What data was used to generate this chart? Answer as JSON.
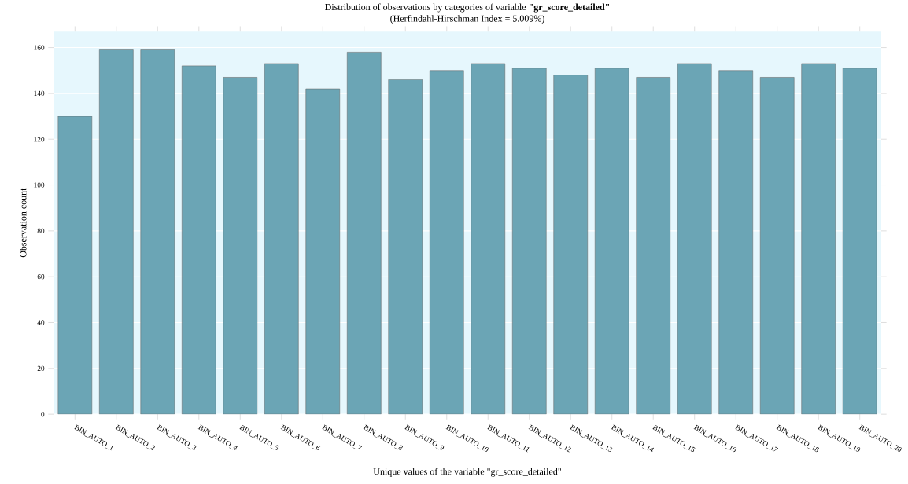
{
  "chart_data": {
    "type": "bar",
    "title": "Distribution of observations by categories of variable **\"gr_score_detailed\"**",
    "subtitle": "(Herfindahl-Hirschman Index = 5.009%)",
    "xlabel": "Unique values of the variable \"gr_score_detailed\"",
    "ylabel": "Observation count",
    "categories": [
      "BIN_AUTO_1",
      "BIN_AUTO_2",
      "BIN_AUTO_3",
      "BIN_AUTO_4",
      "BIN_AUTO_5",
      "BIN_AUTO_6",
      "BIN_AUTO_7",
      "BIN_AUTO_8",
      "BIN_AUTO_9",
      "BIN_AUTO_10",
      "BIN_AUTO_11",
      "BIN_AUTO_12",
      "BIN_AUTO_13",
      "BIN_AUTO_14",
      "BIN_AUTO_15",
      "BIN_AUTO_16",
      "BIN_AUTO_17",
      "BIN_AUTO_18",
      "BIN_AUTO_19",
      "BIN_AUTO_20"
    ],
    "values": [
      130,
      159,
      159,
      152,
      147,
      153,
      142,
      158,
      146,
      150,
      153,
      151,
      148,
      151,
      147,
      153,
      150,
      147,
      153,
      151
    ],
    "color": "#6ba5b5",
    "ylim": [
      0,
      167
    ],
    "yticks": [
      0,
      20,
      40,
      60,
      80,
      100,
      120,
      140,
      160
    ],
    "grid": "y"
  }
}
